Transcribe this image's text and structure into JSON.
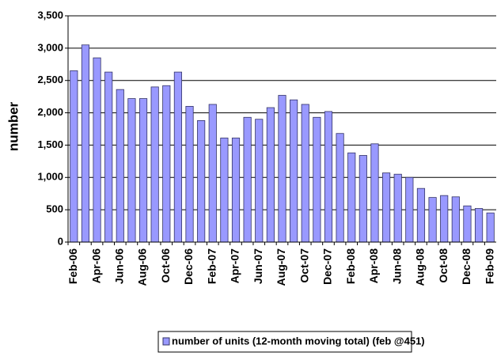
{
  "chart_data": {
    "type": "bar",
    "y_label": "number",
    "categories": [
      "Feb-06",
      null,
      "Apr-06",
      null,
      "Jun-06",
      null,
      "Aug-06",
      null,
      "Oct-06",
      null,
      "Dec-06",
      null,
      "Feb-07",
      null,
      "Apr-07",
      null,
      "Jun-07",
      null,
      "Aug-07",
      null,
      "Oct-07",
      null,
      "Dec-07",
      null,
      "Feb-08",
      null,
      "Apr-08",
      null,
      "Jun-08",
      null,
      "Aug-08",
      null,
      "Oct-08",
      null,
      "Dec-08",
      null,
      "Feb-09"
    ],
    "series": [
      {
        "name": "number of units (12-month moving total) (feb @451)",
        "color": "#9999ff",
        "values": [
          2650,
          3050,
          2850,
          2630,
          2360,
          2220,
          2220,
          2400,
          2420,
          2630,
          2100,
          1880,
          2130,
          1610,
          1610,
          1930,
          1900,
          2080,
          2270,
          2200,
          2130,
          1930,
          2020,
          1680,
          1380,
          1340,
          1520,
          1070,
          1050,
          1000,
          830,
          690,
          720,
          700,
          560,
          520,
          451
        ]
      }
    ],
    "ylim": [
      0,
      3500
    ],
    "yticks": [
      0,
      500,
      {
        "value": 1000,
        "label": "1,000"
      },
      {
        "value": 1500,
        "label": "1,500"
      },
      {
        "value": 2000,
        "label": "2,000"
      },
      {
        "value": 2500,
        "label": "2,500"
      },
      {
        "value": 3000,
        "label": "3,000"
      },
      {
        "value": 3500,
        "label": "3,500"
      }
    ],
    "grid": true,
    "legend": "bottom"
  }
}
